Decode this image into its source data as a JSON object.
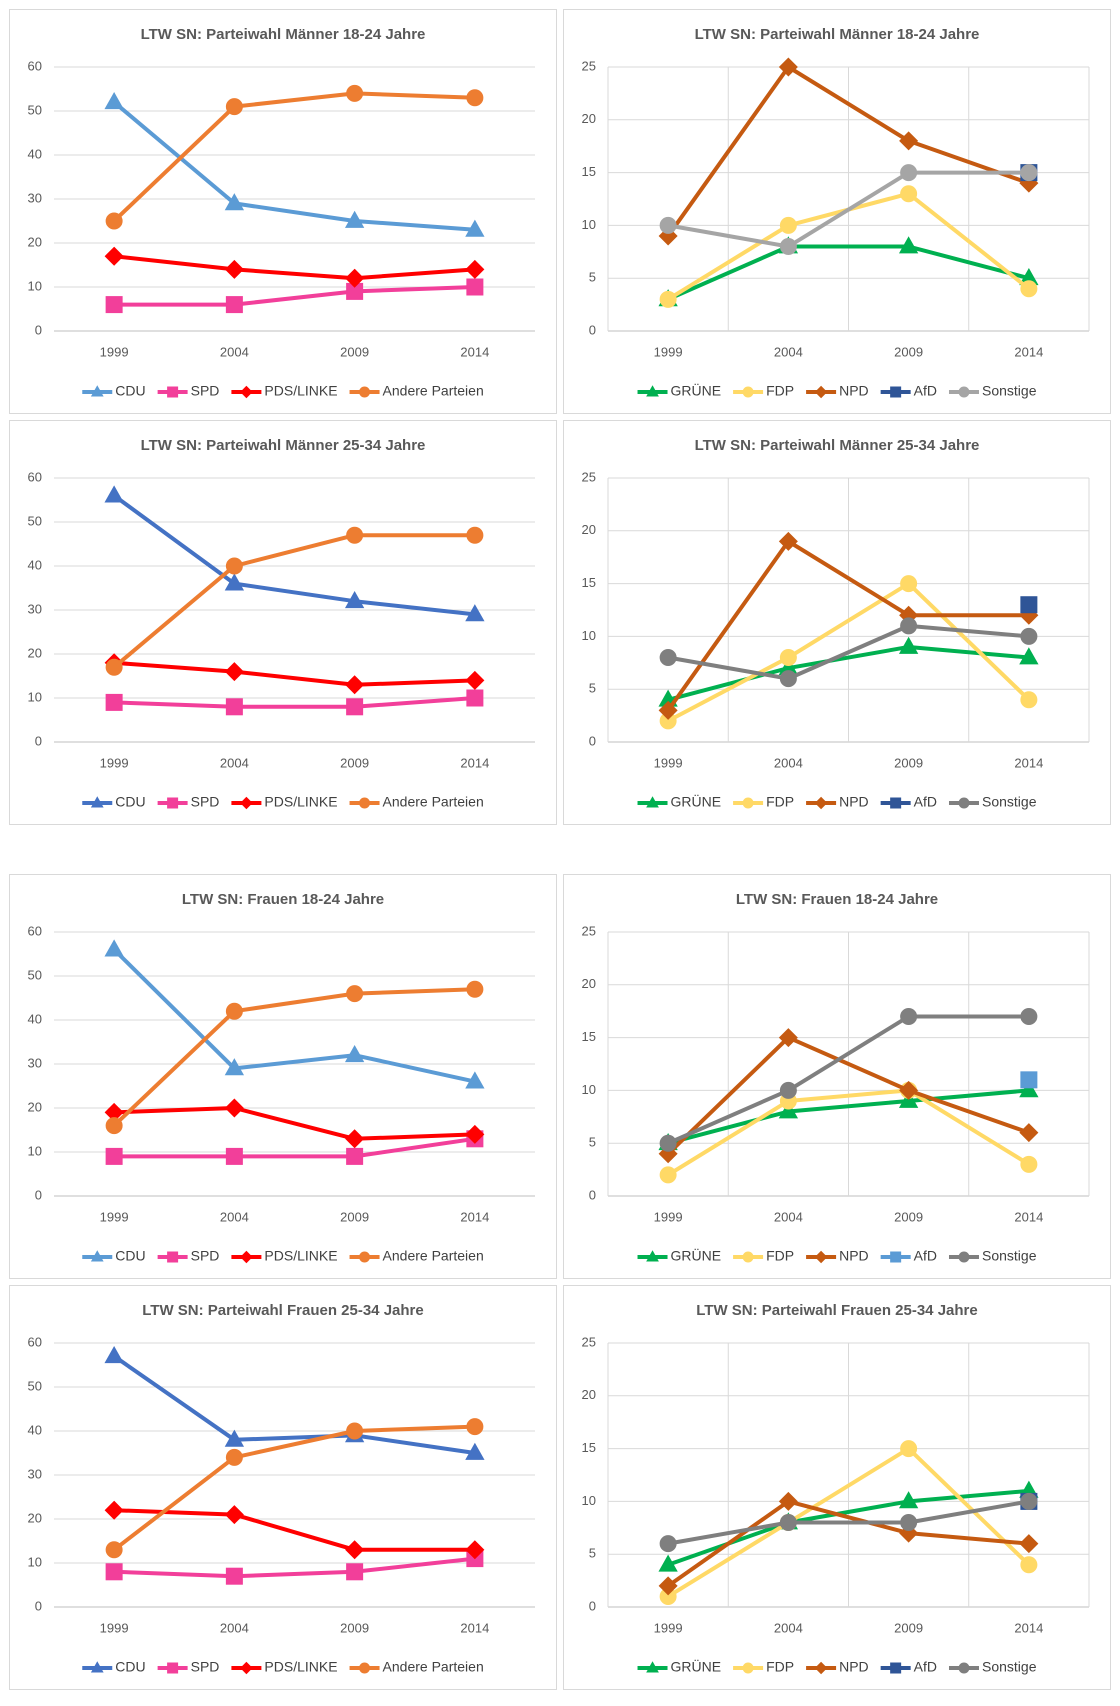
{
  "chart_data": [
    {
      "type": "line",
      "title": "LTW SN: Parteiwahl Männer 18-24 Jahre",
      "categories": [
        "1999",
        "2004",
        "2009",
        "2014"
      ],
      "ylim": [
        0,
        60
      ],
      "yticks": [
        0,
        10,
        20,
        30,
        40,
        50,
        60
      ],
      "grid": true,
      "xgrid": false,
      "series": [
        {
          "name": "CDU",
          "color": "#5b9bd5",
          "marker": "triangle",
          "values": [
            52,
            29,
            25,
            23
          ]
        },
        {
          "name": "SPD",
          "color": "#f23f9a",
          "marker": "square",
          "values": [
            6,
            6,
            9,
            10
          ]
        },
        {
          "name": "PDS/LINKE",
          "color": "#ff0000",
          "marker": "diamond",
          "values": [
            17,
            14,
            12,
            14
          ]
        },
        {
          "name": "Andere Parteien",
          "color": "#ed7d31",
          "marker": "circle",
          "values": [
            25,
            51,
            54,
            53
          ]
        }
      ]
    },
    {
      "type": "line",
      "title": "LTW SN: Parteiwahl Männer 18-24 Jahre",
      "categories": [
        "1999",
        "2004",
        "2009",
        "2014"
      ],
      "ylim": [
        0,
        25
      ],
      "yticks": [
        0,
        5,
        10,
        15,
        20,
        25
      ],
      "grid": true,
      "xgrid": true,
      "series": [
        {
          "name": "GRÜNE",
          "color": "#00b050",
          "marker": "triangle",
          "values": [
            3,
            8,
            8,
            5
          ]
        },
        {
          "name": "FDP",
          "color": "#ffd966",
          "marker": "circle",
          "values": [
            3,
            10,
            13,
            4
          ]
        },
        {
          "name": "NPD",
          "color": "#c55a11",
          "marker": "diamond",
          "values": [
            9,
            25,
            18,
            14
          ]
        },
        {
          "name": "AfD",
          "color": "#2f5597",
          "marker": "square",
          "values": [
            null,
            null,
            null,
            15
          ]
        },
        {
          "name": "Sonstige",
          "color": "#a5a5a5",
          "marker": "circle",
          "values": [
            10,
            8,
            15,
            15
          ]
        }
      ]
    },
    {
      "type": "line",
      "title": "LTW SN: Parteiwahl Männer 25-34 Jahre",
      "categories": [
        "1999",
        "2004",
        "2009",
        "2014"
      ],
      "ylim": [
        0,
        60
      ],
      "yticks": [
        0,
        10,
        20,
        30,
        40,
        50,
        60
      ],
      "grid": true,
      "xgrid": false,
      "series": [
        {
          "name": "CDU",
          "color": "#4472c4",
          "marker": "triangle",
          "values": [
            56,
            36,
            32,
            29
          ]
        },
        {
          "name": "SPD",
          "color": "#f23f9a",
          "marker": "square",
          "values": [
            9,
            8,
            8,
            10
          ]
        },
        {
          "name": "PDS/LINKE",
          "color": "#ff0000",
          "marker": "diamond",
          "values": [
            18,
            16,
            13,
            14
          ]
        },
        {
          "name": "Andere Parteien",
          "color": "#ed7d31",
          "marker": "circle",
          "values": [
            17,
            40,
            47,
            47
          ]
        }
      ]
    },
    {
      "type": "line",
      "title": "LTW SN: Parteiwahl Männer 25-34 Jahre",
      "categories": [
        "1999",
        "2004",
        "2009",
        "2014"
      ],
      "ylim": [
        0,
        25
      ],
      "yticks": [
        0,
        5,
        10,
        15,
        20,
        25
      ],
      "grid": true,
      "xgrid": true,
      "series": [
        {
          "name": "GRÜNE",
          "color": "#00b050",
          "marker": "triangle",
          "values": [
            4,
            7,
            9,
            8
          ]
        },
        {
          "name": "FDP",
          "color": "#ffd966",
          "marker": "circle",
          "values": [
            2,
            8,
            15,
            4
          ]
        },
        {
          "name": "NPD",
          "color": "#c55a11",
          "marker": "diamond",
          "values": [
            3,
            19,
            12,
            12
          ]
        },
        {
          "name": "AfD",
          "color": "#2f5597",
          "marker": "square",
          "values": [
            null,
            null,
            null,
            13
          ]
        },
        {
          "name": "Sonstige",
          "color": "#7f7f7f",
          "marker": "circle",
          "values": [
            8,
            6,
            11,
            10
          ]
        }
      ]
    },
    {
      "type": "line",
      "title": "LTW SN: Frauen 18-24 Jahre",
      "categories": [
        "1999",
        "2004",
        "2009",
        "2014"
      ],
      "ylim": [
        0,
        60
      ],
      "yticks": [
        0,
        10,
        20,
        30,
        40,
        50,
        60
      ],
      "grid": true,
      "xgrid": false,
      "series": [
        {
          "name": "CDU",
          "color": "#5b9bd5",
          "marker": "triangle",
          "values": [
            56,
            29,
            32,
            26
          ]
        },
        {
          "name": "SPD",
          "color": "#f23f9a",
          "marker": "square",
          "values": [
            9,
            9,
            9,
            13
          ]
        },
        {
          "name": "PDS/LINKE",
          "color": "#ff0000",
          "marker": "diamond",
          "values": [
            19,
            20,
            13,
            14
          ]
        },
        {
          "name": "Andere Parteien",
          "color": "#ed7d31",
          "marker": "circle",
          "values": [
            16,
            42,
            46,
            47
          ]
        }
      ]
    },
    {
      "type": "line",
      "title": "LTW SN: Frauen 18-24 Jahre",
      "categories": [
        "1999",
        "2004",
        "2009",
        "2014"
      ],
      "ylim": [
        0,
        25
      ],
      "yticks": [
        0,
        5,
        10,
        15,
        20,
        25
      ],
      "grid": true,
      "xgrid": true,
      "series": [
        {
          "name": "GRÜNE",
          "color": "#00b050",
          "marker": "triangle",
          "values": [
            5,
            8,
            9,
            10
          ]
        },
        {
          "name": "FDP",
          "color": "#ffd966",
          "marker": "circle",
          "values": [
            2,
            9,
            10,
            3
          ]
        },
        {
          "name": "NPD",
          "color": "#c55a11",
          "marker": "diamond",
          "values": [
            4,
            15,
            10,
            6
          ]
        },
        {
          "name": "AfD",
          "color": "#5b9bd5",
          "marker": "square",
          "values": [
            null,
            null,
            null,
            11
          ]
        },
        {
          "name": "Sonstige",
          "color": "#7f7f7f",
          "marker": "circle",
          "values": [
            5,
            10,
            17,
            17
          ]
        }
      ]
    },
    {
      "type": "line",
      "title": "LTW SN: Parteiwahl Frauen 25-34 Jahre",
      "categories": [
        "1999",
        "2004",
        "2009",
        "2014"
      ],
      "ylim": [
        0,
        60
      ],
      "yticks": [
        0,
        10,
        20,
        30,
        40,
        50,
        60
      ],
      "grid": true,
      "xgrid": false,
      "series": [
        {
          "name": "CDU",
          "color": "#4472c4",
          "marker": "triangle",
          "values": [
            57,
            38,
            39,
            35
          ]
        },
        {
          "name": "SPD",
          "color": "#f23f9a",
          "marker": "square",
          "values": [
            8,
            7,
            8,
            11
          ]
        },
        {
          "name": "PDS/LINKE",
          "color": "#ff0000",
          "marker": "diamond",
          "values": [
            22,
            21,
            13,
            13
          ]
        },
        {
          "name": "Andere Parteien",
          "color": "#ed7d31",
          "marker": "circle",
          "values": [
            13,
            34,
            40,
            41
          ]
        }
      ]
    },
    {
      "type": "line",
      "title": "LTW SN: Parteiwahl Frauen 25-34 Jahre",
      "categories": [
        "1999",
        "2004",
        "2009",
        "2014"
      ],
      "ylim": [
        0,
        25
      ],
      "yticks": [
        0,
        5,
        10,
        15,
        20,
        25
      ],
      "grid": true,
      "xgrid": true,
      "series": [
        {
          "name": "GRÜNE",
          "color": "#00b050",
          "marker": "triangle",
          "values": [
            4,
            8,
            10,
            11
          ]
        },
        {
          "name": "FDP",
          "color": "#ffd966",
          "marker": "circle",
          "values": [
            1,
            8,
            15,
            4
          ]
        },
        {
          "name": "NPD",
          "color": "#c55a11",
          "marker": "diamond",
          "values": [
            2,
            10,
            7,
            6
          ]
        },
        {
          "name": "AfD",
          "color": "#2f5597",
          "marker": "square",
          "values": [
            null,
            null,
            null,
            10
          ]
        },
        {
          "name": "Sonstige",
          "color": "#7f7f7f",
          "marker": "circle",
          "values": [
            6,
            8,
            8,
            10
          ]
        }
      ]
    }
  ]
}
